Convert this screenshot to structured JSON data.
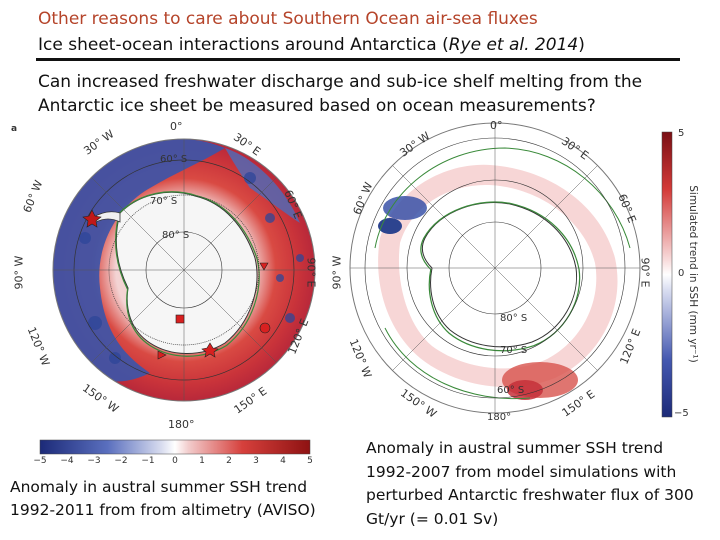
{
  "slide": {
    "title_line1": "Other reasons to care about Southern Ocean air-sea fluxes",
    "title_line2_prefix": "Ice sheet-ocean interactions around Antarctica (",
    "title_line2_cite": "Rye et al. 2014",
    "title_line2_suffix": ")",
    "question": "Can increased freshwater discharge and sub-ice shelf melting from the Antarctic ice sheet be measured based on ocean measurements?",
    "panel_letter": "a"
  },
  "left_map": {
    "labels": {
      "lon_0": "0°",
      "lon_30w": "30° W",
      "lon_30e": "30° E",
      "lon_60w": "60° W",
      "lon_60e": "60° E",
      "lon_90w": "90° W",
      "lon_90e": "90° E",
      "lon_120w": "120° W",
      "lon_120e": "120° E",
      "lon_150w": "150° W",
      "lon_150e": "150° E",
      "lon_180": "180°",
      "lat_60": "60° S",
      "lat_70": "70° S",
      "lat_80": "80° S"
    },
    "colorbar": {
      "ticks": [
        "−5",
        "−4",
        "−3",
        "−2",
        "−1",
        "0",
        "1",
        "2",
        "3",
        "4",
        "5"
      ],
      "min": -5,
      "max": 5
    },
    "caption": "Anomaly in austral summer SSH trend 1992-2011 from from altimetry (AVISO)"
  },
  "right_map": {
    "labels": {
      "lon_0": "0°",
      "lon_30w": "30° W",
      "lon_30e": "30° E",
      "lon_60w": "60° W",
      "lon_60e": "60° E",
      "lon_90w": "90° W",
      "lon_90e": "90° E",
      "lon_120w": "120° W",
      "lon_120e": "120° E",
      "lon_150w": "150° W",
      "lon_150e": "150° E",
      "lon_180": "180°",
      "lat_60": "60° S",
      "lat_70": "70° S",
      "lat_80": "80° S"
    },
    "colorbar": {
      "top": "5",
      "zero": "0",
      "bottom": "−5",
      "label": "Simulated trend in SSH (mm yr⁻¹)",
      "min": -5,
      "max": 5
    },
    "caption": "Anomaly in austral summer SSH trend 1992-2007 from model simulations with perturbed Antarctic freshwater flux of 300 Gt/yr (= 0.01 Sv)"
  },
  "colors": {
    "title_accent": "#b5442a",
    "neg": "#2b3f94",
    "pos": "#c81e1e",
    "coast": "#3a8a3a"
  }
}
